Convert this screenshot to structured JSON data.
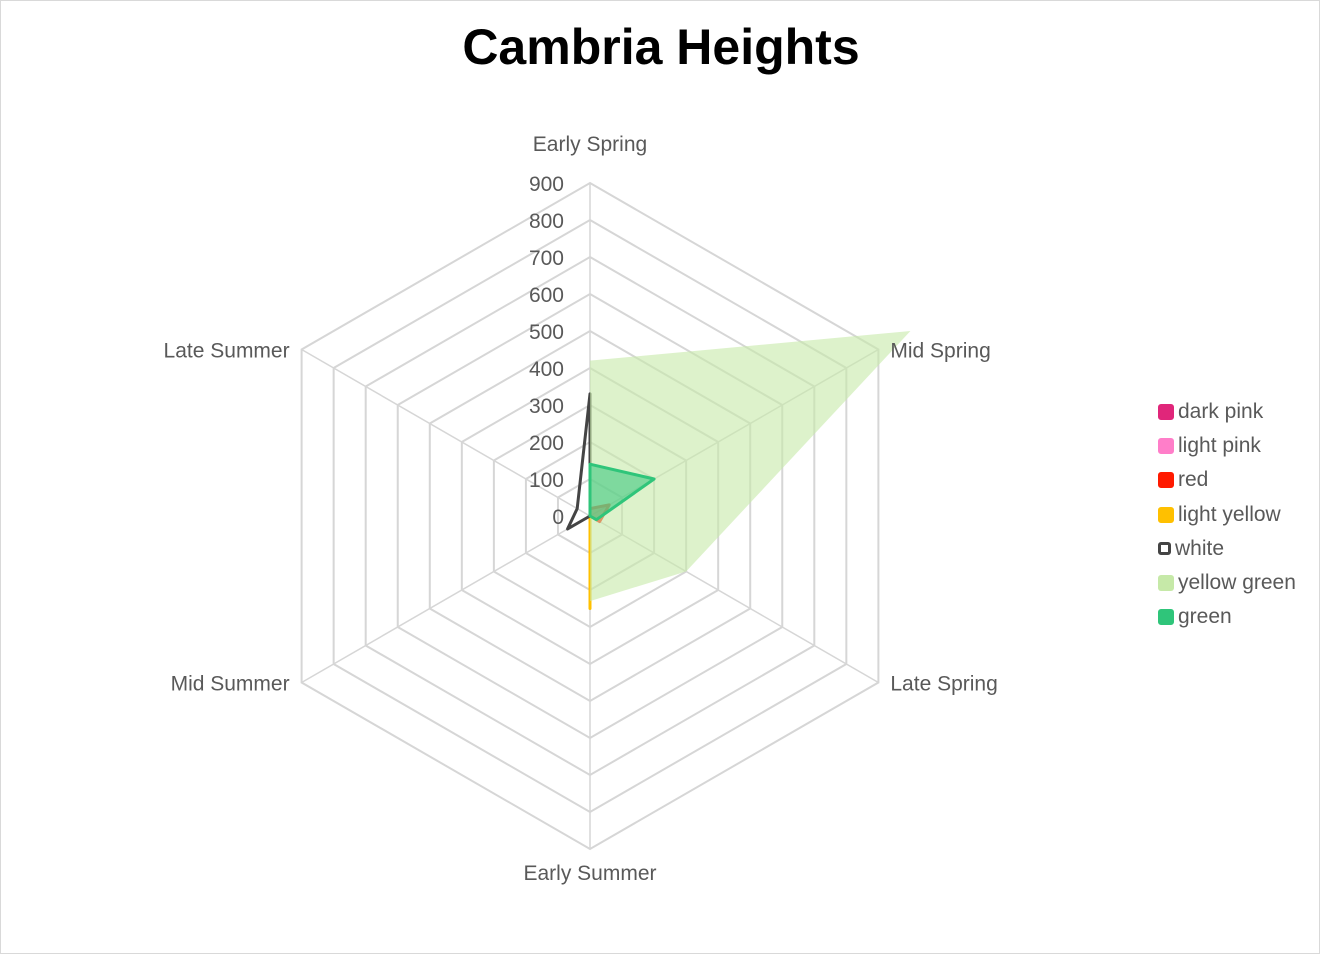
{
  "chart_data": {
    "type": "radar",
    "title": "Cambria Heights",
    "categories": [
      "Early Spring",
      "Mid Spring",
      "Late Spring",
      "Early Summer",
      "Mid Summer",
      "Late Summer"
    ],
    "rlim": [
      0,
      900
    ],
    "ticks": [
      "0",
      "100",
      "200",
      "300",
      "400",
      "500",
      "600",
      "700",
      "800",
      "900"
    ],
    "grid": true,
    "legend_position": "right",
    "series": [
      {
        "name": "dark pink",
        "color": "#e0267a",
        "style": "filled",
        "values": [
          200,
          0,
          0,
          0,
          0,
          0
        ]
      },
      {
        "name": "light pink",
        "color": "#ff7ec9",
        "style": "filled",
        "values": [
          0,
          0,
          0,
          0,
          0,
          0
        ]
      },
      {
        "name": "red",
        "color": "#ff1a00",
        "style": "filled",
        "values": [
          20,
          60,
          30,
          0,
          0,
          0
        ]
      },
      {
        "name": "light yellow",
        "color": "#ffc000",
        "style": "filled",
        "values": [
          0,
          0,
          0,
          250,
          0,
          0
        ]
      },
      {
        "name": "white",
        "color": "#444444",
        "style": "line",
        "values": [
          330,
          0,
          0,
          0,
          70,
          40
        ]
      },
      {
        "name": "yellow green",
        "color": "#c6e9a8",
        "style": "area",
        "values": [
          420,
          1000,
          300,
          230,
          0,
          0
        ]
      },
      {
        "name": "green",
        "color": "#2fc57a",
        "style": "filled",
        "values": [
          140,
          200,
          20,
          0,
          0,
          0
        ]
      }
    ]
  }
}
